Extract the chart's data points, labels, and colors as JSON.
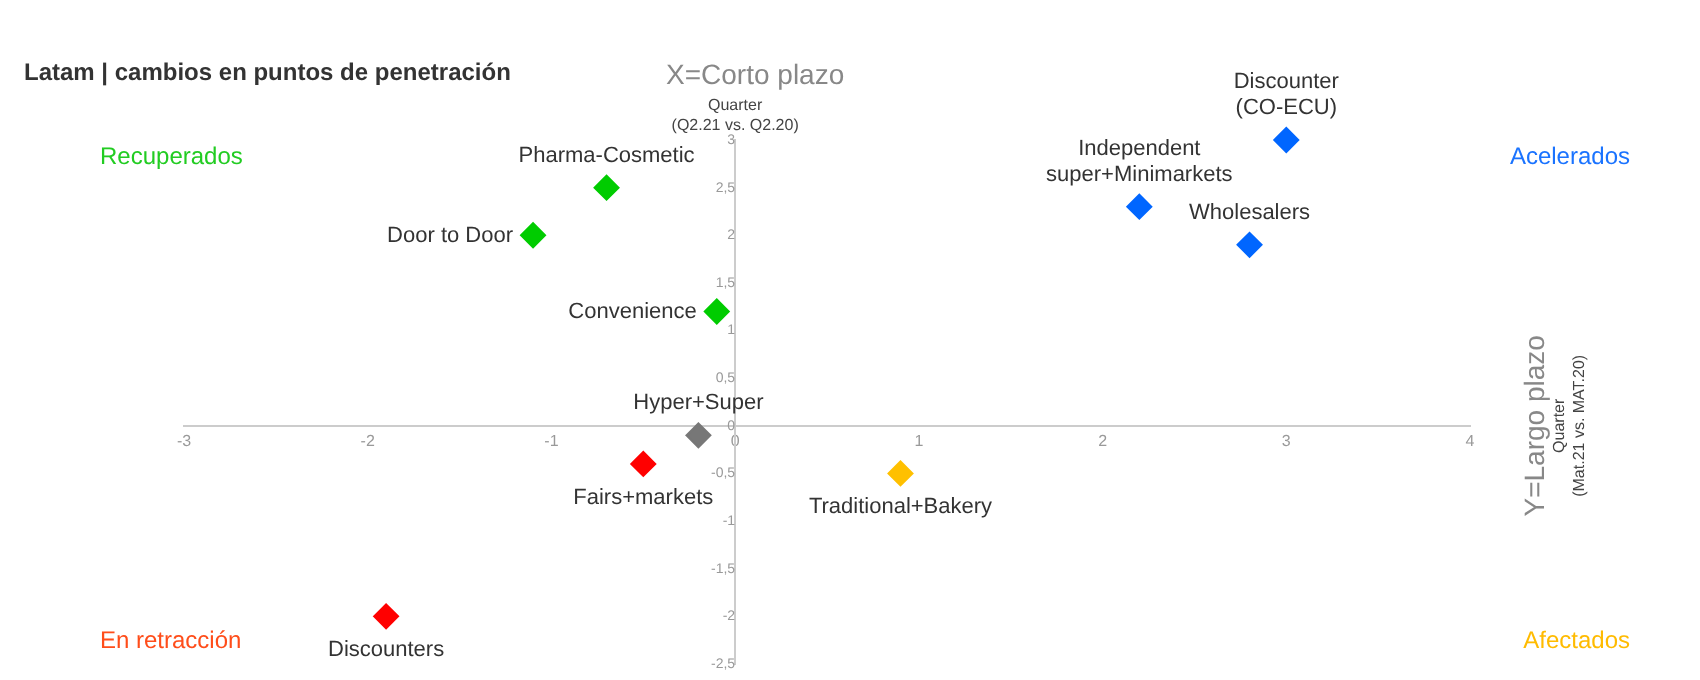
{
  "chart_data": {
    "type": "scatter",
    "title": "Latam | cambios en puntos de penetración",
    "xlabel": "X=Corto plazo\nQuarter\n(Q2.21 vs. Q2.20)",
    "ylabel": "Y=Largo plazo\nQuarter\n(Mat.21 vs. MAT.20)",
    "annotations": [
      "Recuperados",
      "Acelerados",
      "En retracción",
      "Afectados"
    ],
    "series": [
      {
        "name": "Pharma-Cosmetic",
        "color": "#00cc00",
        "x": [
          -0.7
        ],
        "values": [
          2.5
        ]
      },
      {
        "name": "Door to Door",
        "color": "#00cc00",
        "x": [
          -1.1
        ],
        "values": [
          2.0
        ]
      },
      {
        "name": "Convenience",
        "color": "#00cc00",
        "x": [
          -0.1
        ],
        "values": [
          1.2
        ]
      },
      {
        "name": "Discounter (CO-ECU)",
        "color": "#0066ff",
        "x": [
          3.0
        ],
        "values": [
          3.0
        ]
      },
      {
        "name": "Independent super+Minimarkets",
        "color": "#0066ff",
        "x": [
          2.2
        ],
        "values": [
          2.3
        ]
      },
      {
        "name": "Wholesalers",
        "color": "#0066ff",
        "x": [
          2.8
        ],
        "values": [
          1.9
        ]
      },
      {
        "name": "Hyper+Super",
        "color": "#777777",
        "x": [
          -0.2
        ],
        "values": [
          -0.1
        ]
      },
      {
        "name": "Fairs+markets",
        "color": "#ff0000",
        "x": [
          -0.5
        ],
        "values": [
          -0.4
        ]
      },
      {
        "name": "Traditional+Bakery",
        "color": "#ffc000",
        "x": [
          0.9
        ],
        "values": [
          -0.5
        ]
      },
      {
        "name": "Discounters",
        "color": "#ff0000",
        "x": [
          -1.9
        ],
        "values": [
          -2.0
        ]
      }
    ],
    "xlim": [
      -3,
      4
    ],
    "xticks": [
      -3,
      -2,
      -1,
      0,
      1,
      2,
      3,
      4
    ],
    "ylim": [
      -2.5,
      3
    ],
    "yticks": [
      {
        "value": -2.5,
        "label": "-2,5"
      },
      -2,
      {
        "value": -1.5,
        "label": "-1,5"
      },
      -1,
      {
        "value": -0.5,
        "label": "-0,5"
      },
      0,
      {
        "value": 0.5,
        "label": "0,5"
      },
      1,
      {
        "value": 1.5,
        "label": "1,5"
      },
      2,
      {
        "value": 2.5,
        "label": "2,5"
      },
      3
    ],
    "grid": false,
    "legend": false,
    "marker": "diamond"
  }
}
